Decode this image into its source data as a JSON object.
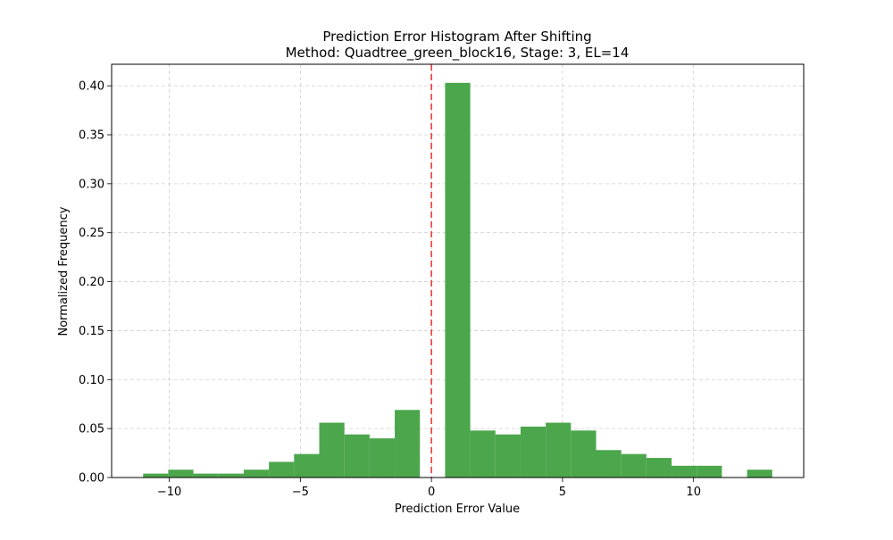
{
  "chart_data": {
    "type": "bar",
    "title": "Prediction Error Histogram After Shifting",
    "subtitle": "Method: Quadtree_green_block16, Stage: 3, EL=14",
    "xlabel": "Prediction Error Value",
    "ylabel": "Normalized Frequency",
    "xlim": [
      -12.2,
      14.2
    ],
    "ylim": [
      0,
      0.422
    ],
    "xticks": [
      -10,
      -5,
      0,
      5,
      10
    ],
    "xtick_labels": [
      "−10",
      "−5",
      "0",
      "5",
      "10"
    ],
    "yticks": [
      0.0,
      0.05,
      0.1,
      0.15,
      0.2,
      0.25,
      0.3,
      0.35,
      0.4
    ],
    "ytick_labels": [
      "0.00",
      "0.05",
      "0.10",
      "0.15",
      "0.20",
      "0.25",
      "0.30",
      "0.35",
      "0.40"
    ],
    "grid": true,
    "bar_color": "#4ca64c",
    "reference_line": {
      "x": 0,
      "color": "#ee3a3a",
      "style": "dashed"
    },
    "bins": [
      {
        "x0": -11.0,
        "x1": -10.04,
        "value": 0.004
      },
      {
        "x0": -10.04,
        "x1": -9.08,
        "value": 0.008
      },
      {
        "x0": -9.08,
        "x1": -8.12,
        "value": 0.004
      },
      {
        "x0": -8.12,
        "x1": -7.16,
        "value": 0.004
      },
      {
        "x0": -7.16,
        "x1": -6.2,
        "value": 0.008
      },
      {
        "x0": -6.2,
        "x1": -5.24,
        "value": 0.016
      },
      {
        "x0": -5.24,
        "x1": -4.28,
        "value": 0.024
      },
      {
        "x0": -4.28,
        "x1": -3.32,
        "value": 0.056
      },
      {
        "x0": -3.32,
        "x1": -2.36,
        "value": 0.044
      },
      {
        "x0": -2.36,
        "x1": -1.4,
        "value": 0.04
      },
      {
        "x0": -1.4,
        "x1": -0.44,
        "value": 0.069
      },
      {
        "x0": -0.44,
        "x1": 0.52,
        "value": 0.0
      },
      {
        "x0": 0.52,
        "x1": 1.48,
        "value": 0.403
      },
      {
        "x0": 1.48,
        "x1": 2.44,
        "value": 0.048
      },
      {
        "x0": 2.44,
        "x1": 3.4,
        "value": 0.044
      },
      {
        "x0": 3.4,
        "x1": 4.36,
        "value": 0.052
      },
      {
        "x0": 4.36,
        "x1": 5.32,
        "value": 0.056
      },
      {
        "x0": 5.32,
        "x1": 6.28,
        "value": 0.048
      },
      {
        "x0": 6.28,
        "x1": 7.24,
        "value": 0.028
      },
      {
        "x0": 7.24,
        "x1": 8.2,
        "value": 0.024
      },
      {
        "x0": 8.2,
        "x1": 9.16,
        "value": 0.02
      },
      {
        "x0": 9.16,
        "x1": 10.12,
        "value": 0.012
      },
      {
        "x0": 10.12,
        "x1": 11.08,
        "value": 0.012
      },
      {
        "x0": 11.08,
        "x1": 12.04,
        "value": 0.0
      },
      {
        "x0": 12.04,
        "x1": 13.0,
        "value": 0.008
      }
    ]
  }
}
